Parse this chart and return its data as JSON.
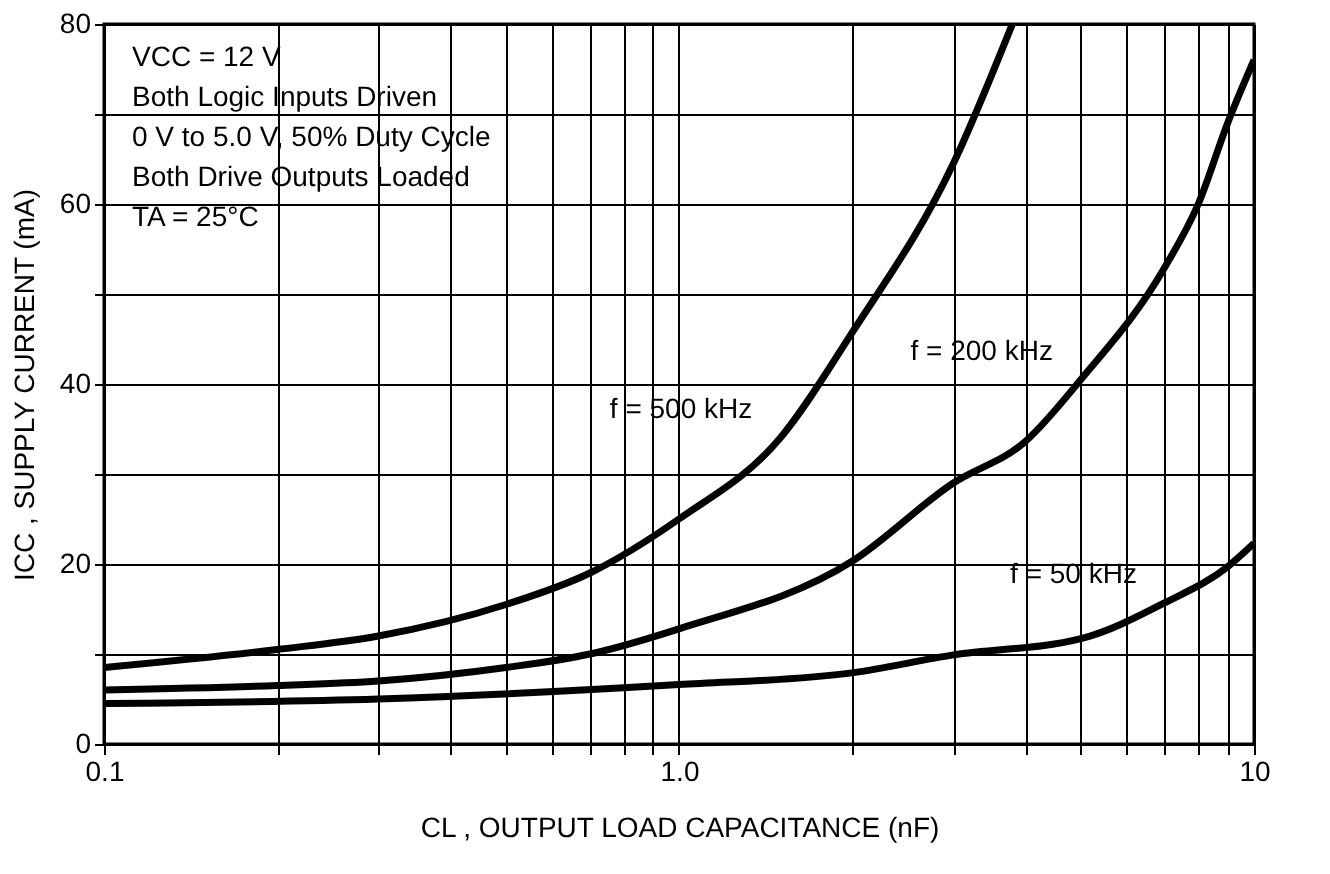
{
  "chart_data": {
    "type": "line",
    "xlabel": "CL , OUTPUT LOAD CAPACITANCE (nF)",
    "ylabel": "ICC , SUPPLY CURRENT (mA)",
    "log": "x",
    "grid": true,
    "legend": false,
    "marker": "none",
    "line_style": "solid",
    "xlim": [
      0.1,
      10
    ],
    "ylim": [
      0,
      80
    ],
    "xticks": [
      {
        "value": 0.1,
        "label": "0.1"
      },
      {
        "value": 0.2,
        "label": null
      },
      {
        "value": 0.3,
        "label": null
      },
      {
        "value": 0.4,
        "label": null
      },
      {
        "value": 0.5,
        "label": null
      },
      {
        "value": 0.6,
        "label": null
      },
      {
        "value": 0.7,
        "label": null
      },
      {
        "value": 0.8,
        "label": null
      },
      {
        "value": 0.9,
        "label": null
      },
      {
        "value": 1,
        "label": "1.0"
      },
      {
        "value": 2,
        "label": null
      },
      {
        "value": 3,
        "label": null
      },
      {
        "value": 4,
        "label": null
      },
      {
        "value": 5,
        "label": null
      },
      {
        "value": 6,
        "label": null
      },
      {
        "value": 7,
        "label": null
      },
      {
        "value": 8,
        "label": null
      },
      {
        "value": 9,
        "label": null
      },
      {
        "value": 10,
        "label": "10"
      }
    ],
    "yticks": [
      0,
      {
        "value": 10,
        "label": null
      },
      20,
      {
        "value": 30,
        "label": null
      },
      40,
      {
        "value": 50,
        "label": null
      },
      60,
      {
        "value": 70,
        "label": null
      },
      80
    ],
    "series": [
      {
        "color": "#000000",
        "x": [
          0.1,
          0.2,
          0.3,
          0.5,
          0.7,
          1.0,
          1.5,
          2,
          3,
          3.8
        ],
        "values": [
          8.5,
          10.5,
          12,
          15.5,
          19,
          25,
          34,
          45.7,
          64.5,
          80
        ]
      },
      {
        "color": "#000000",
        "x": [
          0.1,
          0.2,
          0.3,
          0.5,
          0.7,
          1.0,
          2,
          3,
          4,
          5,
          7,
          8,
          9,
          10
        ],
        "values": [
          6,
          6.5,
          7,
          8.5,
          10,
          12.8,
          20.3,
          29,
          33.6,
          40.5,
          53,
          60,
          69,
          76
        ]
      },
      {
        "color": "#000000",
        "x": [
          0.1,
          0.3,
          1.0,
          2,
          3,
          5,
          7,
          9,
          10
        ],
        "values": [
          4.5,
          5,
          6.6,
          7.9,
          9.9,
          11.7,
          15.7,
          19.7,
          22.3
        ]
      }
    ],
    "annotations": [
      "VCC = 12 V",
      "Both Logic Inputs Driven",
      "0 V to 5.0 V, 50% Duty Cycle",
      "Both Drive Outputs Loaded",
      "TA = 25°C",
      {
        "text": "f = 500 kHz",
        "x": 1.5,
        "y": 34
      },
      {
        "text": "f = 200 kHz",
        "x": 5,
        "y": 40.5
      },
      {
        "text": "f = 50 kHz",
        "x": 7,
        "y": 15.7
      }
    ]
  }
}
